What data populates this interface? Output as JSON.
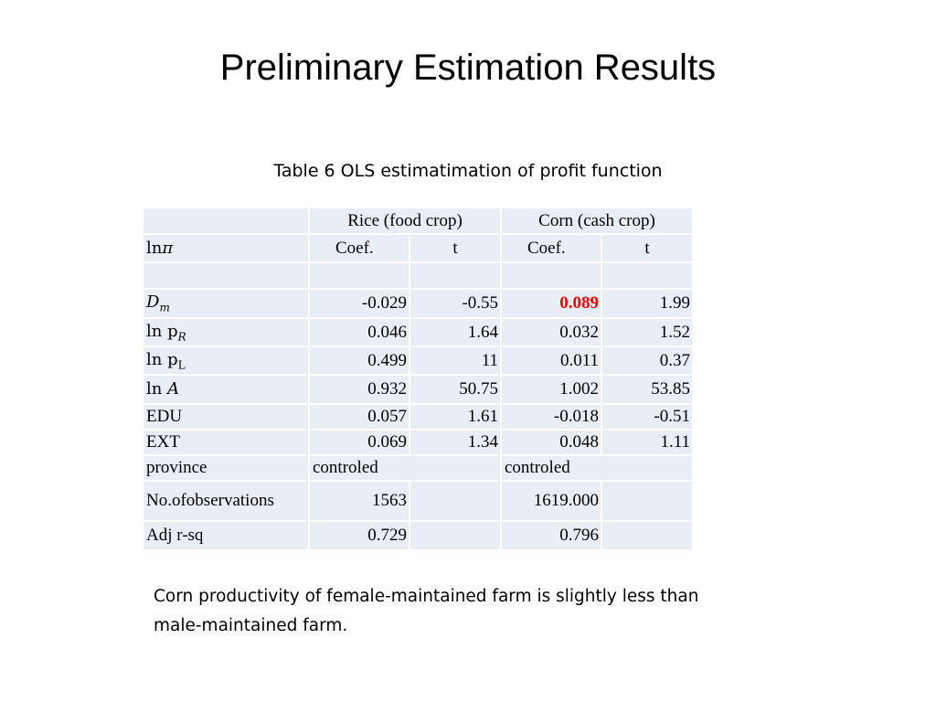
{
  "slide": {
    "title": "Preliminary Estimation Results"
  },
  "table": {
    "caption": "Table 6 OLS estimatimation of profit function",
    "group_headers": [
      "Rice (food crop)",
      "Corn (cash crop)"
    ],
    "dep_var": {
      "prefix": "ln",
      "symbol": "π"
    },
    "subheaders": [
      "Coef.",
      "t",
      "Coef.",
      "t"
    ],
    "rows": [
      {
        "label_base": "D",
        "label_sub": "m",
        "values": [
          "-0.029",
          "-0.55",
          "0.089",
          "1.99"
        ]
      },
      {
        "label_base": "ln p",
        "label_sub": "R",
        "values": [
          "0.046",
          "1.64",
          "0.032",
          "1.52"
        ]
      },
      {
        "label_base": "ln p",
        "label_sub": "L",
        "values": [
          "0.499",
          "11",
          "0.011",
          "0.37"
        ]
      },
      {
        "label_base": "ln ",
        "label_sub": "A",
        "values": [
          "0.932",
          "50.75",
          "1.002",
          "53.85"
        ]
      },
      {
        "label": "EDU",
        "values": [
          "0.057",
          "1.61",
          "-0.018",
          "-0.51"
        ]
      },
      {
        "label": "EXT",
        "values": [
          "0.069",
          "1.34",
          "0.048",
          "1.11"
        ]
      }
    ],
    "province": {
      "label": "province",
      "rice": "controled",
      "corn": "controled"
    },
    "observations": {
      "label": "No.ofobservations",
      "rice": "1563",
      "corn": "1619.000"
    },
    "adj_rsq": {
      "label": "Adj r-sq",
      "rice": "0.729",
      "corn": "0.796"
    },
    "highlight_color": "#ff0000"
  },
  "note": "Corn productivity of female-maintained farm is slightly less than male-maintained farm."
}
